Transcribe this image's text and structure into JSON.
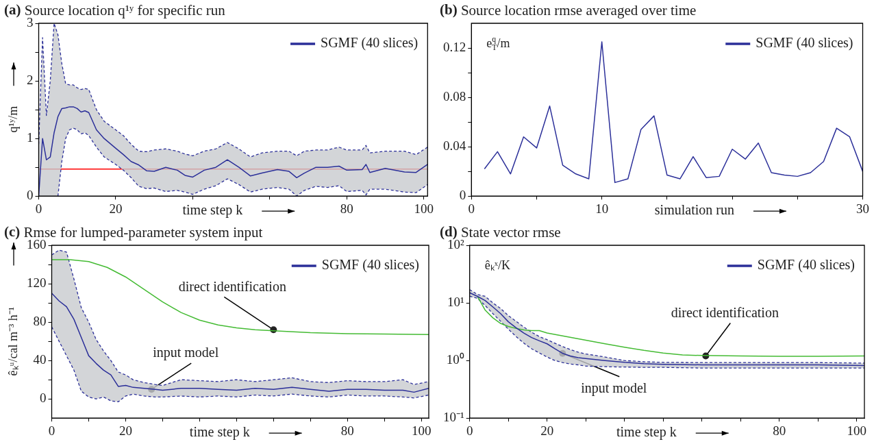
{
  "chart_data": [
    {
      "type": "line",
      "title": "(a) Source location q¹ʸ for specific run",
      "xlabel": "time step k",
      "ylabel": "q¹ʸ/m",
      "xlim": [
        0,
        101
      ],
      "xticks": [
        0,
        20,
        {
          "value": 40,
          "label": null
        },
        {
          "value": 60,
          "label": null
        },
        80,
        100
      ],
      "ylim": [
        0,
        3
      ],
      "yticks": [
        0,
        {
          "value": 0.5,
          "label": null
        },
        1,
        {
          "value": 1.5,
          "label": null
        },
        2,
        {
          "value": 2.5,
          "label": null
        },
        3
      ],
      "legend": "top right",
      "x": [
        0,
        1,
        2,
        3,
        4,
        5,
        6,
        7,
        8,
        9,
        10,
        11,
        12,
        13,
        15,
        17,
        20,
        22,
        24,
        26,
        28,
        30,
        33,
        36,
        38,
        40,
        43,
        46,
        49,
        52,
        55,
        58,
        62,
        65,
        67,
        69,
        72,
        75,
        78,
        80,
        84,
        85,
        86,
        90,
        95,
        98,
        101
      ],
      "series": [
        {
          "name": "SGMF (40 slices)",
          "color": "#2b2f99",
          "values": [
            0,
            1.0,
            0.63,
            0.68,
            1.1,
            1.38,
            1.52,
            1.53,
            1.55,
            1.55,
            1.52,
            1.46,
            1.48,
            1.45,
            1.15,
            1.0,
            0.83,
            0.72,
            0.6,
            0.54,
            0.44,
            0.43,
            0.5,
            0.45,
            0.36,
            0.33,
            0.45,
            0.5,
            0.63,
            0.5,
            0.35,
            0.4,
            0.46,
            0.43,
            0.32,
            0.4,
            0.5,
            0.5,
            0.52,
            0.45,
            0.46,
            0.55,
            0.41,
            0.48,
            0.42,
            0.41,
            0.55
          ],
          "upper": [
            0.9,
            2.75,
            1.4,
            2.0,
            3.0,
            2.8,
            2.3,
            1.95,
            1.93,
            1.93,
            1.88,
            1.85,
            1.87,
            1.85,
            1.5,
            1.3,
            1.15,
            1.05,
            0.9,
            0.78,
            0.77,
            0.8,
            0.82,
            0.78,
            0.73,
            0.7,
            0.78,
            0.82,
            0.93,
            0.82,
            0.68,
            0.75,
            0.78,
            0.78,
            0.7,
            0.78,
            0.8,
            0.8,
            0.85,
            0.8,
            0.8,
            0.88,
            0.75,
            0.78,
            0.78,
            0.72,
            0.85
          ],
          "lower": [
            0,
            0,
            0,
            0,
            0,
            0,
            0.6,
            1.0,
            1.15,
            1.18,
            1.15,
            1.08,
            1.1,
            1.05,
            0.85,
            0.68,
            0.55,
            0.45,
            0.32,
            0.17,
            0.13,
            0.14,
            0.08,
            0.1,
            0.07,
            0.03,
            0.12,
            0.18,
            0.3,
            0.2,
            0.07,
            0.12,
            0.15,
            0.12,
            0,
            0.1,
            0.17,
            0.15,
            0.18,
            0.08,
            0.1,
            0.02,
            0.12,
            0.12,
            0.07,
            0.06,
            0.2
          ]
        },
        {
          "color": "#2b2f99",
          "line_style": "dashed",
          "values": [
            0.9,
            2.75,
            1.4,
            2.0,
            3.0,
            2.8,
            2.3,
            1.95,
            1.93,
            1.93,
            1.88,
            1.85,
            1.87,
            1.85,
            1.5,
            1.3,
            1.15,
            1.05,
            0.9,
            0.78,
            0.77,
            0.8,
            0.82,
            0.78,
            0.73,
            0.7,
            0.78,
            0.82,
            0.93,
            0.82,
            0.68,
            0.75,
            0.78,
            0.78,
            0.7,
            0.78,
            0.8,
            0.8,
            0.85,
            0.8,
            0.8,
            0.88,
            0.75,
            0.78,
            0.78,
            0.72,
            0.85
          ]
        },
        {
          "color": "#2b2f99",
          "line_style": "dashed",
          "values": [
            null,
            null,
            null,
            null,
            null,
            0,
            0.6,
            1.0,
            1.15,
            1.18,
            1.15,
            1.08,
            1.1,
            1.05,
            0.85,
            0.68,
            0.55,
            0.45,
            0.32,
            0.17,
            0.13,
            0.14,
            0.08,
            0.1,
            0.07,
            0.03,
            0.12,
            0.18,
            0.3,
            0.2,
            0.07,
            0.12,
            0.15,
            0.12,
            0,
            0.1,
            0.17,
            0.15,
            0.18,
            0.08,
            0.1,
            0.02,
            0.12,
            0.12,
            0.07,
            0.06,
            0.2
          ]
        }
      ],
      "ref_lines": [
        {
          "axis": "y",
          "value": 0.47,
          "color": "#ff0000"
        }
      ]
    },
    {
      "type": "line",
      "title": "(b) Source location rmse averaged over time",
      "xlabel": "simulation run",
      "ylabel": "e$^{q}$$_{T}$/m",
      "xlim": [
        0,
        30
      ],
      "xticks": [
        0,
        {
          "value": 5,
          "label": null
        },
        10,
        {
          "value": 15,
          "label": null
        },
        {
          "value": 20,
          "label": null
        },
        {
          "value": 25,
          "label": null
        },
        30
      ],
      "ylim": [
        0,
        0.14
      ],
      "yticks": [
        0,
        {
          "value": 0.02,
          "label": null
        },
        0.04,
        {
          "value": 0.06,
          "label": null
        },
        0.08,
        {
          "value": 0.1,
          "label": null
        },
        0.12
      ],
      "legend": "top right",
      "x": [
        1,
        2,
        3,
        4,
        5,
        6,
        7,
        8,
        9,
        10,
        11,
        12,
        13,
        14,
        15,
        16,
        17,
        18,
        19,
        20,
        21,
        22,
        23,
        24,
        25,
        26,
        27,
        28,
        29,
        30
      ],
      "series": [
        {
          "name": "SGMF (40 slices)",
          "color": "#2b2f99",
          "values": [
            0.022,
            0.036,
            0.018,
            0.048,
            0.039,
            0.073,
            0.025,
            0.018,
            0.014,
            0.125,
            0.011,
            0.014,
            0.054,
            0.065,
            0.017,
            0.014,
            0.032,
            0.015,
            0.016,
            0.038,
            0.03,
            0.043,
            0.019,
            0.017,
            0.016,
            0.019,
            0.028,
            0.055,
            0.048,
            0.02
          ]
        }
      ]
    },
    {
      "type": "line",
      "title": "(c) Rmse for lumped-parameter system input",
      "xlabel": "time step k",
      "ylabel": "êₖᵘ/cal m⁻³ h⁻¹",
      "xlim": [
        0,
        102
      ],
      "xticks": [
        0,
        {
          "value": 10,
          "label": null
        },
        20,
        {
          "value": 30,
          "label": null
        },
        {
          "value": 40,
          "label": null
        },
        {
          "value": 50,
          "label": null
        },
        {
          "value": 60,
          "label": null
        },
        {
          "value": 70,
          "label": null
        },
        80,
        {
          "value": 90,
          "label": null
        },
        100
      ],
      "ylim": [
        -20,
        160
      ],
      "yticks": [
        0,
        {
          "value": 20,
          "label": null
        },
        40,
        {
          "value": 60,
          "label": null
        },
        80,
        {
          "value": 100,
          "label": null
        },
        120,
        {
          "value": 140,
          "label": null
        },
        160
      ],
      "legend": "top right",
      "x": [
        0,
        2,
        4,
        6,
        8,
        10,
        12,
        14,
        16,
        18,
        20,
        22,
        25,
        28,
        30,
        35,
        40,
        45,
        50,
        55,
        60,
        65,
        70,
        75,
        80,
        85,
        90,
        95,
        98,
        102
      ],
      "series": [
        {
          "name": "SGMF (40 slices)",
          "color": "#2b2f99",
          "values": [
            110,
            102,
            96,
            83,
            64,
            45,
            37,
            30,
            25,
            13,
            14,
            12,
            11,
            10,
            9,
            11,
            11,
            10,
            9,
            11,
            10,
            12,
            10,
            8,
            10,
            10,
            9,
            9,
            7,
            11
          ],
          "upper": [
            150,
            155,
            153,
            125,
            95,
            80,
            62,
            50,
            40,
            28,
            25,
            20,
            17,
            15,
            14,
            20,
            19,
            18,
            20,
            18,
            20,
            22,
            18,
            17,
            19,
            18,
            18,
            20,
            15,
            18
          ],
          "lower": [
            75,
            60,
            45,
            30,
            8,
            2,
            0,
            2,
            -2,
            -3,
            3,
            5,
            3,
            2,
            2,
            3,
            2,
            3,
            2,
            4,
            3,
            5,
            3,
            2,
            4,
            3,
            3,
            2,
            1,
            4
          ]
        },
        {
          "color": "#2b2f99",
          "line_style": "dashed",
          "values": [
            150,
            155,
            153,
            125,
            95,
            80,
            62,
            50,
            40,
            28,
            25,
            20,
            17,
            15,
            14,
            20,
            19,
            18,
            20,
            18,
            20,
            22,
            18,
            17,
            19,
            18,
            18,
            20,
            15,
            18
          ]
        },
        {
          "color": "#2b2f99",
          "line_style": "dashed",
          "values": [
            75,
            60,
            45,
            30,
            8,
            2,
            0,
            2,
            -2,
            -3,
            3,
            5,
            3,
            2,
            2,
            3,
            2,
            3,
            2,
            4,
            3,
            5,
            3,
            2,
            4,
            3,
            3,
            2,
            1,
            4
          ]
        },
        {
          "color": "#44bb33",
          "x": [
            0,
            5,
            10,
            15,
            20,
            25,
            30,
            35,
            40,
            45,
            50,
            55,
            60,
            70,
            80,
            90,
            102
          ],
          "values": [
            145,
            145,
            143,
            137,
            127,
            114,
            101,
            90,
            82,
            77,
            74,
            72,
            71,
            69,
            68,
            67.5,
            67
          ]
        }
      ],
      "annotations": [
        {
          "text": "direct identification",
          "x": 60,
          "y": 72
        },
        {
          "text": "input model",
          "x": 27,
          "y": 10
        }
      ]
    },
    {
      "type": "line",
      "title": "(d) State vector rmse",
      "xlabel": "time step k",
      "ylabel": "êₖˣ/K",
      "log": true,
      "xlim": [
        0,
        102
      ],
      "xticks": [
        0,
        {
          "value": 10,
          "label": null
        },
        20,
        {
          "value": 30,
          "label": null
        },
        {
          "value": 40,
          "label": null
        },
        {
          "value": 50,
          "label": null
        },
        {
          "value": 60,
          "label": null
        },
        {
          "value": 70,
          "label": null
        },
        80,
        {
          "value": 90,
          "label": null
        },
        100
      ],
      "ylim": [
        0.1,
        100
      ],
      "yticks": [
        {
          "value": 0.1,
          "label": "10⁻¹"
        },
        {
          "value": 1,
          "label": "10⁰"
        },
        {
          "value": 10,
          "label": "10¹"
        },
        {
          "value": 100,
          "label": "10²"
        }
      ],
      "legend": "top right",
      "x": [
        0,
        2,
        4,
        6,
        8,
        10,
        12,
        14,
        16,
        18,
        20,
        22,
        24,
        26,
        28,
        30,
        35,
        40,
        45,
        50,
        60,
        70,
        80,
        90,
        102
      ],
      "series": [
        {
          "name": "SGMF (40 slices)",
          "color": "#2b2f99",
          "values": [
            15,
            13,
            11,
            8.5,
            6.5,
            4.7,
            3.7,
            3.0,
            2.5,
            2.2,
            1.95,
            1.6,
            1.33,
            1.2,
            1.12,
            1.08,
            1.0,
            0.93,
            0.88,
            0.86,
            0.84,
            0.84,
            0.84,
            0.84,
            0.82
          ],
          "upper": [
            17,
            14,
            13,
            10,
            8,
            6,
            4.8,
            3.8,
            3.1,
            2.6,
            2.3,
            2.0,
            1.75,
            1.55,
            1.4,
            1.3,
            1.15,
            1.0,
            0.95,
            0.93,
            0.92,
            0.92,
            0.92,
            0.92,
            0.9
          ],
          "lower": [
            13,
            12,
            9,
            6.5,
            4.8,
            3.5,
            2.6,
            2.0,
            1.6,
            1.35,
            1.15,
            1.0,
            0.92,
            0.87,
            0.84,
            0.8,
            0.78,
            0.77,
            0.76,
            0.76,
            0.74,
            0.74,
            0.74,
            0.74,
            0.74
          ]
        },
        {
          "color": "#2b2f99",
          "line_style": "dashed",
          "values": [
            17,
            14,
            13,
            10,
            8,
            6,
            4.8,
            3.8,
            3.1,
            2.6,
            2.3,
            2.0,
            1.75,
            1.55,
            1.4,
            1.3,
            1.15,
            1.0,
            0.95,
            0.93,
            0.92,
            0.92,
            0.92,
            0.92,
            0.9
          ]
        },
        {
          "color": "#2b2f99",
          "line_style": "dashed",
          "values": [
            13,
            12,
            9,
            6.5,
            4.8,
            3.5,
            2.6,
            2.0,
            1.6,
            1.35,
            1.15,
            1.0,
            0.92,
            0.87,
            0.84,
            0.8,
            0.78,
            0.77,
            0.76,
            0.76,
            0.74,
            0.74,
            0.74,
            0.74,
            0.74
          ]
        },
        {
          "color": "#44bb33",
          "x": [
            2,
            4,
            6,
            8,
            10,
            12,
            14,
            16,
            18,
            20,
            25,
            30,
            35,
            40,
            45,
            50,
            55,
            60,
            70,
            80,
            90,
            102
          ],
          "values": [
            13,
            7.5,
            5.5,
            4.4,
            3.9,
            3.6,
            3.4,
            3.3,
            3.3,
            3.0,
            2.6,
            2.25,
            1.95,
            1.7,
            1.5,
            1.35,
            1.25,
            1.22,
            1.2,
            1.18,
            1.18,
            1.2
          ]
        }
      ],
      "annotations": [
        {
          "text": "direct identification",
          "x": 61,
          "y": 1.2
        },
        {
          "text": "input model",
          "x": 24,
          "y": 1.33
        }
      ]
    }
  ]
}
